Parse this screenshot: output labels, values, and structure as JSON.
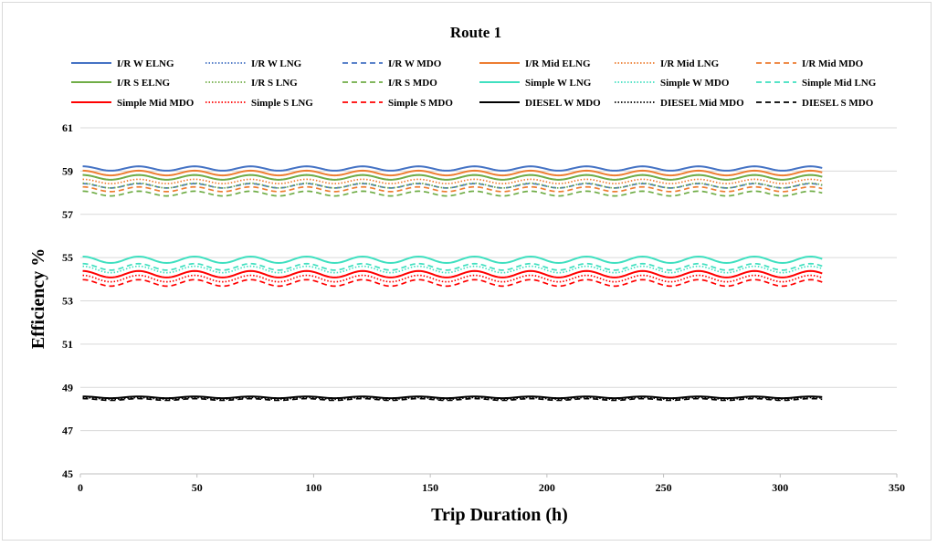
{
  "chart_data": {
    "type": "line",
    "title": "Route 1",
    "xlabel": "Trip Duration (h)",
    "ylabel": "Efficiency %",
    "xlim": [
      0,
      350
    ],
    "ylim": [
      45,
      61
    ],
    "x_ticks": [
      "0",
      "50",
      "100",
      "150",
      "200",
      "250",
      "300",
      "350"
    ],
    "y_ticks": [
      "45",
      "47",
      "49",
      "51",
      "53",
      "55",
      "57",
      "59",
      "61"
    ],
    "grid": "horizontal",
    "legend_position": "top",
    "x_range": [
      1,
      318
    ],
    "oscillation_period_h": 24,
    "series": [
      {
        "name": "I/R W ELNG",
        "color": "#4472C4",
        "dash": "solid",
        "min": 59.02,
        "max": 59.22
      },
      {
        "name": "I/R W LNG",
        "color": "#4472C4",
        "dash": "dotted",
        "min": 58.6,
        "max": 58.82
      },
      {
        "name": "I/R W MDO",
        "color": "#4472C4",
        "dash": "dashed",
        "min": 58.22,
        "max": 58.42
      },
      {
        "name": "I/R Mid ELNG",
        "color": "#ED7D31",
        "dash": "solid",
        "min": 58.8,
        "max": 59.02
      },
      {
        "name": "I/R Mid LNG",
        "color": "#ED7D31",
        "dash": "dotted",
        "min": 58.42,
        "max": 58.62
      },
      {
        "name": "I/R Mid MDO",
        "color": "#ED7D31",
        "dash": "dashed",
        "min": 58.05,
        "max": 58.27
      },
      {
        "name": "I/R S ELNG",
        "color": "#70AD47",
        "dash": "solid",
        "min": 58.6,
        "max": 58.82
      },
      {
        "name": "I/R S LNG",
        "color": "#70AD47",
        "dash": "dotted",
        "min": 58.22,
        "max": 58.44
      },
      {
        "name": "I/R S MDO",
        "color": "#70AD47",
        "dash": "dashed",
        "min": 57.85,
        "max": 58.07
      },
      {
        "name": "Simple W LNG",
        "color": "#40E0C0",
        "dash": "solid",
        "min": 54.75,
        "max": 55.05
      },
      {
        "name": "Simple W MDO",
        "color": "#40E0C0",
        "dash": "dotted",
        "min": 54.3,
        "max": 54.6
      },
      {
        "name": "Simple Mid LNG",
        "color": "#40E0C0",
        "dash": "dashed",
        "min": 54.42,
        "max": 54.72
      },
      {
        "name": "Simple Mid MDO",
        "color": "#FF0000",
        "dash": "solid",
        "min": 54.08,
        "max": 54.38
      },
      {
        "name": "Simple S LNG",
        "color": "#FF0000",
        "dash": "dotted",
        "min": 53.88,
        "max": 54.18
      },
      {
        "name": "Simple S MDO",
        "color": "#FF0000",
        "dash": "dashed",
        "min": 53.68,
        "max": 53.98
      },
      {
        "name": "DIESEL W MDO",
        "color": "#000000",
        "dash": "solid",
        "min": 48.5,
        "max": 48.58
      },
      {
        "name": "DIESEL Mid MDO",
        "color": "#000000",
        "dash": "dotted",
        "min": 48.45,
        "max": 48.53
      },
      {
        "name": "DIESEL S MDO",
        "color": "#000000",
        "dash": "dashed",
        "min": 48.4,
        "max": 48.48
      }
    ]
  }
}
